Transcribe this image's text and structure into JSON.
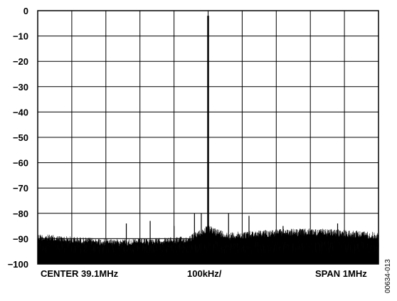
{
  "chart_data": {
    "type": "line",
    "x_unit": "MHz",
    "xlim": [
      38.6,
      39.6
    ],
    "ylim": [
      -100,
      0
    ],
    "y_ticks": [
      "0",
      "−10",
      "−20",
      "−30",
      "−40",
      "−50",
      "−60",
      "−70",
      "−80",
      "−90",
      "−100"
    ],
    "x_divisions": 10,
    "grid": true,
    "labels": {
      "center": "CENTER 39.1MHz",
      "scale": "100kHz/",
      "span": "SPAN 1MHz"
    },
    "figure_code": "00634-013",
    "noise_floor_db": [
      -100,
      -88
    ],
    "peaks": [
      {
        "x": 39.1,
        "y": -2
      },
      {
        "x": 39.0,
        "y": -85
      },
      {
        "x": 39.06,
        "y": -80
      },
      {
        "x": 39.08,
        "y": -80
      },
      {
        "x": 39.12,
        "y": -86
      },
      {
        "x": 39.16,
        "y": -80
      },
      {
        "x": 39.22,
        "y": -81
      },
      {
        "x": 38.93,
        "y": -83
      },
      {
        "x": 38.86,
        "y": -84
      },
      {
        "x": 39.48,
        "y": -84
      },
      {
        "x": 39.32,
        "y": -85
      }
    ]
  }
}
